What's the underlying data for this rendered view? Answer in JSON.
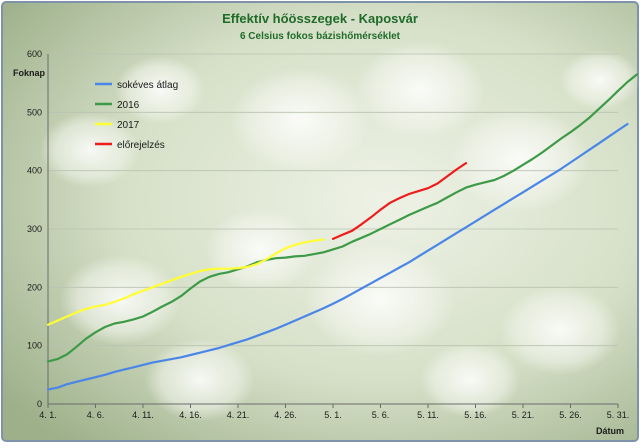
{
  "chart_data": {
    "type": "line",
    "title": "Effektív hőösszegek - Kaposvár",
    "subtitle": "6 Celsius fokos bázishőmérséklet",
    "ylabel": "Foknap",
    "xlabel": "Dátum",
    "ylim": [
      0,
      600
    ],
    "yticks": [
      0,
      100,
      200,
      300,
      400,
      500,
      600
    ],
    "xlim": [
      0,
      60
    ],
    "xticks": [
      {
        "day": 0,
        "label": "4. 1."
      },
      {
        "day": 5,
        "label": "4. 6."
      },
      {
        "day": 10,
        "label": "4. 11."
      },
      {
        "day": 15,
        "label": "4. 16."
      },
      {
        "day": 20,
        "label": "4. 21."
      },
      {
        "day": 25,
        "label": "4. 26."
      },
      {
        "day": 30,
        "label": "5. 1."
      },
      {
        "day": 35,
        "label": "5. 6."
      },
      {
        "day": 40,
        "label": "5. 11."
      },
      {
        "day": 45,
        "label": "5. 16."
      },
      {
        "day": 50,
        "label": "5. 21."
      },
      {
        "day": 55,
        "label": "5. 26."
      },
      {
        "day": 60,
        "label": "5. 31."
      }
    ],
    "grid": true,
    "legend_position": "top-left",
    "series": [
      {
        "name": "sokéves átlag",
        "color": "#4a86e8",
        "points": [
          [
            0,
            25
          ],
          [
            1,
            28
          ],
          [
            2,
            34
          ],
          [
            3,
            38
          ],
          [
            4,
            42
          ],
          [
            5,
            46
          ],
          [
            6,
            50
          ],
          [
            7,
            55
          ],
          [
            8,
            59
          ],
          [
            9,
            63
          ],
          [
            10,
            67
          ],
          [
            11,
            71
          ],
          [
            12,
            74
          ],
          [
            13,
            77
          ],
          [
            14,
            80
          ],
          [
            15,
            84
          ],
          [
            16,
            88
          ],
          [
            17,
            92
          ],
          [
            18,
            96
          ],
          [
            19,
            101
          ],
          [
            20,
            106
          ],
          [
            21,
            111
          ],
          [
            22,
            117
          ],
          [
            23,
            123
          ],
          [
            24,
            129
          ],
          [
            25,
            136
          ],
          [
            26,
            143
          ],
          [
            27,
            150
          ],
          [
            28,
            157
          ],
          [
            29,
            164
          ],
          [
            30,
            172
          ],
          [
            31,
            180
          ],
          [
            32,
            189
          ],
          [
            33,
            198
          ],
          [
            34,
            207
          ],
          [
            35,
            216
          ],
          [
            36,
            225
          ],
          [
            37,
            234
          ],
          [
            38,
            243
          ],
          [
            39,
            253
          ],
          [
            40,
            263
          ],
          [
            41,
            273
          ],
          [
            42,
            283
          ],
          [
            43,
            293
          ],
          [
            44,
            303
          ],
          [
            45,
            313
          ],
          [
            46,
            323
          ],
          [
            47,
            333
          ],
          [
            48,
            343
          ],
          [
            49,
            353
          ],
          [
            50,
            363
          ],
          [
            51,
            373
          ],
          [
            52,
            383
          ],
          [
            53,
            393
          ],
          [
            54,
            403
          ],
          [
            55,
            414
          ],
          [
            56,
            425
          ],
          [
            57,
            436
          ],
          [
            58,
            447
          ],
          [
            59,
            458
          ],
          [
            60,
            469
          ],
          [
            61,
            480
          ]
        ]
      },
      {
        "name": "2016",
        "color": "#3d9a46",
        "points": [
          [
            0,
            73
          ],
          [
            1,
            77
          ],
          [
            2,
            85
          ],
          [
            3,
            98
          ],
          [
            4,
            112
          ],
          [
            5,
            123
          ],
          [
            6,
            132
          ],
          [
            7,
            138
          ],
          [
            8,
            141
          ],
          [
            9,
            145
          ],
          [
            10,
            150
          ],
          [
            11,
            158
          ],
          [
            12,
            167
          ],
          [
            13,
            175
          ],
          [
            14,
            185
          ],
          [
            15,
            198
          ],
          [
            16,
            210
          ],
          [
            17,
            218
          ],
          [
            18,
            223
          ],
          [
            19,
            226
          ],
          [
            20,
            231
          ],
          [
            21,
            236
          ],
          [
            22,
            243
          ],
          [
            23,
            247
          ],
          [
            24,
            250
          ],
          [
            25,
            251
          ],
          [
            26,
            253
          ],
          [
            27,
            254
          ],
          [
            28,
            257
          ],
          [
            29,
            260
          ],
          [
            30,
            265
          ],
          [
            31,
            270
          ],
          [
            32,
            278
          ],
          [
            33,
            285
          ],
          [
            34,
            292
          ],
          [
            35,
            300
          ],
          [
            36,
            308
          ],
          [
            37,
            316
          ],
          [
            38,
            324
          ],
          [
            39,
            331
          ],
          [
            40,
            338
          ],
          [
            41,
            345
          ],
          [
            42,
            354
          ],
          [
            43,
            363
          ],
          [
            44,
            371
          ],
          [
            45,
            376
          ],
          [
            46,
            380
          ],
          [
            47,
            384
          ],
          [
            48,
            391
          ],
          [
            49,
            400
          ],
          [
            50,
            410
          ],
          [
            51,
            420
          ],
          [
            52,
            431
          ],
          [
            53,
            443
          ],
          [
            54,
            455
          ],
          [
            55,
            466
          ],
          [
            56,
            478
          ],
          [
            57,
            491
          ],
          [
            58,
            506
          ],
          [
            59,
            521
          ],
          [
            60,
            537
          ],
          [
            61,
            552
          ],
          [
            62,
            565
          ]
        ]
      },
      {
        "name": "2017",
        "color": "#ffff33",
        "points": [
          [
            0,
            136
          ],
          [
            1,
            143
          ],
          [
            2,
            150
          ],
          [
            3,
            157
          ],
          [
            4,
            163
          ],
          [
            5,
            167
          ],
          [
            6,
            170
          ],
          [
            7,
            175
          ],
          [
            8,
            181
          ],
          [
            9,
            188
          ],
          [
            10,
            194
          ],
          [
            11,
            200
          ],
          [
            12,
            206
          ],
          [
            13,
            212
          ],
          [
            14,
            218
          ],
          [
            15,
            223
          ],
          [
            16,
            228
          ],
          [
            17,
            231
          ],
          [
            18,
            232
          ],
          [
            19,
            232
          ],
          [
            20,
            233
          ],
          [
            21,
            235
          ],
          [
            22,
            240
          ],
          [
            23,
            248
          ],
          [
            24,
            258
          ],
          [
            25,
            267
          ],
          [
            26,
            273
          ],
          [
            27,
            277
          ],
          [
            28,
            280
          ],
          [
            29,
            282
          ]
        ]
      },
      {
        "name": "előrejelzés",
        "color": "#ee1c1c",
        "points": [
          [
            30,
            283
          ],
          [
            31,
            290
          ],
          [
            32,
            297
          ],
          [
            33,
            308
          ],
          [
            34,
            320
          ],
          [
            35,
            333
          ],
          [
            36,
            345
          ],
          [
            37,
            353
          ],
          [
            38,
            360
          ],
          [
            39,
            365
          ],
          [
            40,
            370
          ],
          [
            41,
            378
          ],
          [
            42,
            390
          ],
          [
            43,
            402
          ],
          [
            44,
            413
          ]
        ]
      }
    ]
  }
}
